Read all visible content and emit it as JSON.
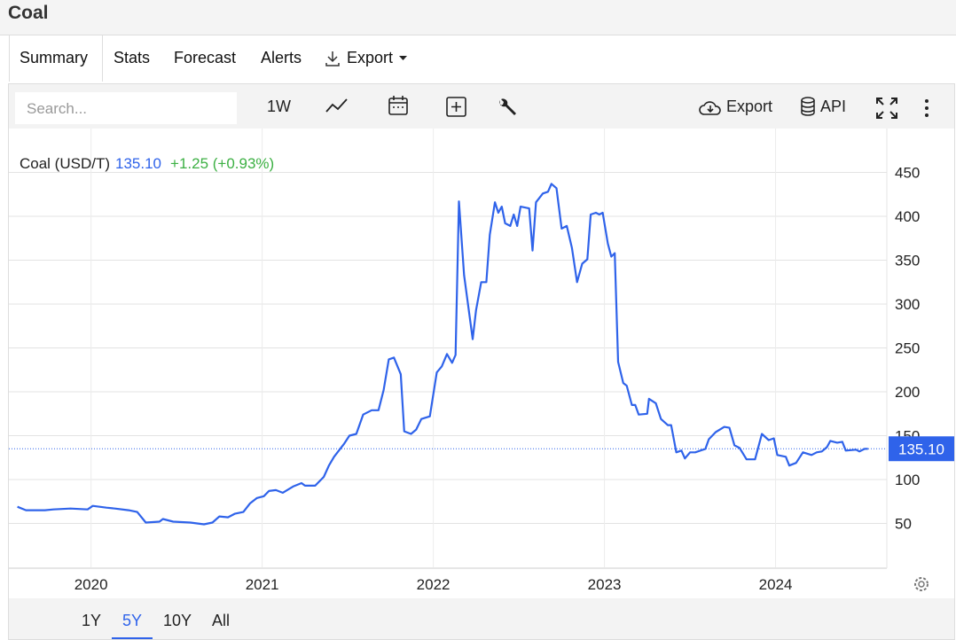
{
  "header": {
    "title": "Coal"
  },
  "tabs": [
    "Summary",
    "Stats",
    "Forecast",
    "Alerts",
    "Export"
  ],
  "toolbar": {
    "search_placeholder": "Search...",
    "interval": "1W",
    "export": "Export",
    "api": "API"
  },
  "quote": {
    "price": "135.10",
    "change": "+1.25 (+0.93%)"
  },
  "chart_data": {
    "type": "line",
    "x": [
      2019.57,
      2019.62,
      2019.73,
      2019.78,
      2019.88,
      2019.98,
      2020.01,
      2020.09,
      2020.14,
      2020.22,
      2020.27,
      2020.32,
      2020.4,
      2020.42,
      2020.48,
      2020.58,
      2020.66,
      2020.71,
      2020.75,
      2020.8,
      2020.84,
      2020.89,
      2020.93,
      2020.97,
      2021.01,
      2021.04,
      2021.08,
      2021.12,
      2021.18,
      2021.23,
      2021.25,
      2021.31,
      2021.36,
      2021.39,
      2021.42,
      2021.48,
      2021.51,
      2021.55,
      2021.59,
      2021.64,
      2021.68,
      2021.71,
      2021.74,
      2021.77,
      2021.81,
      2021.83,
      2021.87,
      2021.9,
      2021.93,
      2021.98,
      2022.02,
      2022.05,
      2022.08,
      2022.11,
      2022.13,
      2022.15,
      2022.18,
      2022.23,
      2022.25,
      2022.28,
      2022.31,
      2022.33,
      2022.36,
      2022.38,
      2022.4,
      2022.42,
      2022.45,
      2022.47,
      2022.49,
      2022.51,
      2022.56,
      2022.58,
      2022.6,
      2022.64,
      2022.67,
      2022.69,
      2022.72,
      2022.75,
      2022.78,
      2022.81,
      2022.84,
      2022.87,
      2022.9,
      2022.92,
      2022.95,
      2022.97,
      2022.99,
      2023.02,
      2023.04,
      2023.06,
      2023.08,
      2023.11,
      2023.13,
      2023.16,
      2023.18,
      2023.2,
      2023.25,
      2023.26,
      2023.3,
      2023.33,
      2023.37,
      2023.39,
      2023.42,
      2023.45,
      2023.47,
      2023.5,
      2023.53,
      2023.59,
      2023.61,
      2023.65,
      2023.7,
      2023.73,
      2023.76,
      2023.79,
      2023.83,
      2023.88,
      2023.92,
      2023.96,
      2023.99,
      2024.01,
      2024.06,
      2024.08,
      2024.12,
      2024.16,
      2024.21,
      2024.24,
      2024.27,
      2024.3,
      2024.32,
      2024.36,
      2024.39,
      2024.41,
      2024.47,
      2024.49,
      2024.52,
      2024.54
    ],
    "series": [
      {
        "name": "Coal (USD/T)",
        "color": "#2f63ea",
        "values": [
          69,
          65,
          65,
          66,
          67,
          66,
          70,
          68,
          67,
          65,
          63,
          51,
          52,
          55,
          52,
          51,
          49,
          51,
          58,
          57,
          61,
          63,
          73,
          79,
          81,
          87,
          88,
          85,
          92,
          96,
          93,
          93,
          103,
          116,
          126,
          141,
          150,
          152,
          174,
          179,
          179,
          202,
          237,
          239,
          220,
          155,
          152,
          157,
          169,
          172,
          222,
          229,
          243,
          233,
          242,
          417,
          333,
          260,
          293,
          325,
          325,
          379,
          416,
          404,
          411,
          392,
          389,
          402,
          389,
          411,
          409,
          361,
          416,
          426,
          428,
          437,
          432,
          386,
          389,
          364,
          325,
          346,
          351,
          402,
          404,
          402,
          404,
          369,
          354,
          358,
          234,
          210,
          207,
          185,
          185,
          174,
          175,
          192,
          187,
          169,
          162,
          162,
          131,
          133,
          124,
          131,
          131,
          135,
          146,
          154,
          160,
          159,
          139,
          136,
          123,
          123,
          152,
          145,
          147,
          128,
          126,
          116,
          119,
          131,
          128,
          131,
          132,
          137,
          144,
          142,
          143,
          133,
          134,
          132,
          135,
          135.1
        ]
      }
    ],
    "xlim": [
      2019.52,
      2024.65
    ],
    "xticks": [
      2020,
      2021,
      2022,
      2023,
      2024
    ],
    "ylim": [
      0,
      500
    ],
    "yticks": [
      50,
      100,
      150,
      200,
      250,
      300,
      350,
      400,
      450
    ],
    "grid": true
  },
  "ranges": [
    "1Y",
    "5Y",
    "10Y",
    "All"
  ]
}
